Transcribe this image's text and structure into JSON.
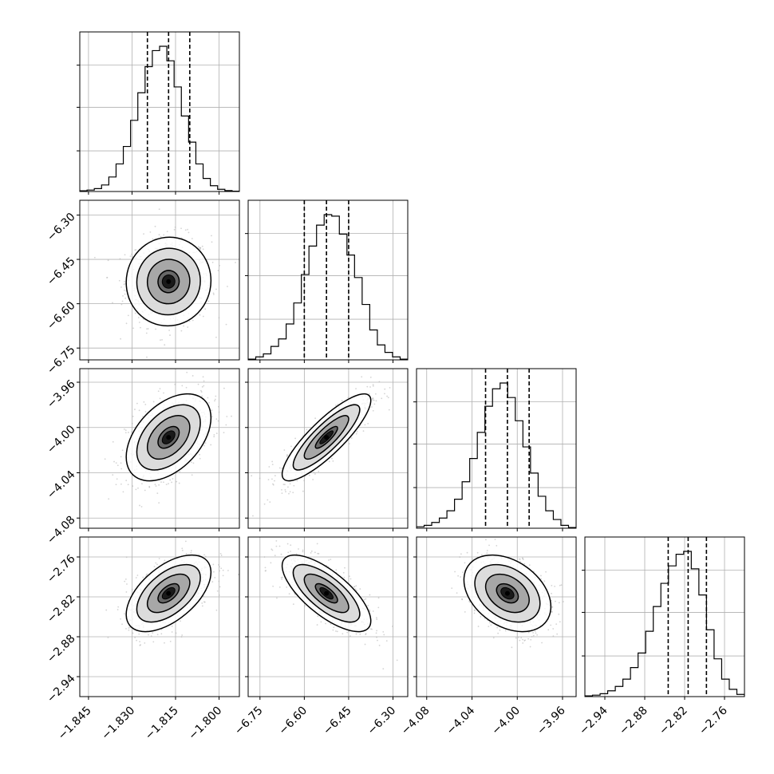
{
  "chart_data": {
    "type": "corner",
    "title": "",
    "params": [
      {
        "range": [
          -1.848,
          -1.793
        ],
        "ticks": [
          -1.845,
          -1.83,
          -1.815,
          -1.8
        ],
        "tick_labels": [
          "−1.845",
          "−1.830",
          "−1.815",
          "−1.800"
        ],
        "quantiles": [
          -1.8247,
          -1.8174,
          -1.8101
        ],
        "hist": [
          0.005,
          0.01,
          0.02,
          0.045,
          0.1,
          0.19,
          0.31,
          0.49,
          0.68,
          0.86,
          0.97,
          1.0,
          0.9,
          0.72,
          0.52,
          0.34,
          0.19,
          0.09,
          0.04,
          0.015,
          0.006,
          0.002
        ],
        "mean": -1.8174,
        "sd": 0.0073
      },
      {
        "range": [
          -6.79,
          -6.25
        ],
        "ticks": [
          -6.75,
          -6.6,
          -6.45,
          -6.3
        ],
        "tick_labels": [
          "−6.75",
          "−6.60",
          "−6.45",
          "−6.30"
        ],
        "quantiles": [
          -6.6,
          -6.525,
          -6.45
        ],
        "hist": [
          0.005,
          0.02,
          0.04,
          0.09,
          0.14,
          0.24,
          0.38,
          0.57,
          0.76,
          0.9,
          0.97,
          0.96,
          0.84,
          0.7,
          0.55,
          0.37,
          0.2,
          0.1,
          0.05,
          0.02,
          0.005
        ],
        "mean": -6.525,
        "sd": 0.075
      },
      {
        "range": [
          -4.089,
          -3.948
        ],
        "ticks": [
          -4.08,
          -4.04,
          -4.0,
          -3.96
        ],
        "tick_labels": [
          "−4.08",
          "−4.04",
          "−4.00",
          "−3.96"
        ],
        "quantiles": [
          -4.028,
          -4.0087,
          -3.9895
        ],
        "hist": [
          0.01,
          0.02,
          0.04,
          0.07,
          0.12,
          0.2,
          0.32,
          0.48,
          0.66,
          0.84,
          0.96,
          1.0,
          0.9,
          0.74,
          0.56,
          0.38,
          0.22,
          0.12,
          0.06,
          0.02,
          0.005
        ],
        "mean": -4.0087,
        "sd": 0.0192
      },
      {
        "range": [
          -2.97,
          -2.73
        ],
        "ticks": [
          -2.94,
          -2.88,
          -2.82,
          -2.76
        ],
        "tick_labels": [
          "−2.94",
          "−2.88",
          "−2.82",
          "−2.76"
        ],
        "quantiles": [
          -2.8447,
          -2.8147,
          -2.7872
        ],
        "hist": [
          0.005,
          0.01,
          0.02,
          0.04,
          0.07,
          0.12,
          0.2,
          0.3,
          0.45,
          0.62,
          0.78,
          0.9,
          0.98,
          1.0,
          0.88,
          0.7,
          0.46,
          0.26,
          0.12,
          0.05,
          0.015
        ],
        "mean": -2.8147,
        "sd": 0.0288
      }
    ],
    "correlations": [
      [
        1.0,
        0.02,
        0.45,
        0.55
      ],
      [
        0.02,
        1.0,
        0.85,
        -0.72
      ],
      [
        0.45,
        0.85,
        1.0,
        -0.35
      ],
      [
        0.55,
        -0.72,
        -0.35,
        1.0
      ]
    ],
    "quantile_levels": [
      0.16,
      0.5,
      0.84
    ],
    "contour_levels": [
      0.5,
      1.0,
      1.5,
      2.0
    ],
    "grid": true,
    "colors": {
      "line": "#000000",
      "points": "#b0b0b0",
      "grid": "#b0b0b0"
    }
  }
}
